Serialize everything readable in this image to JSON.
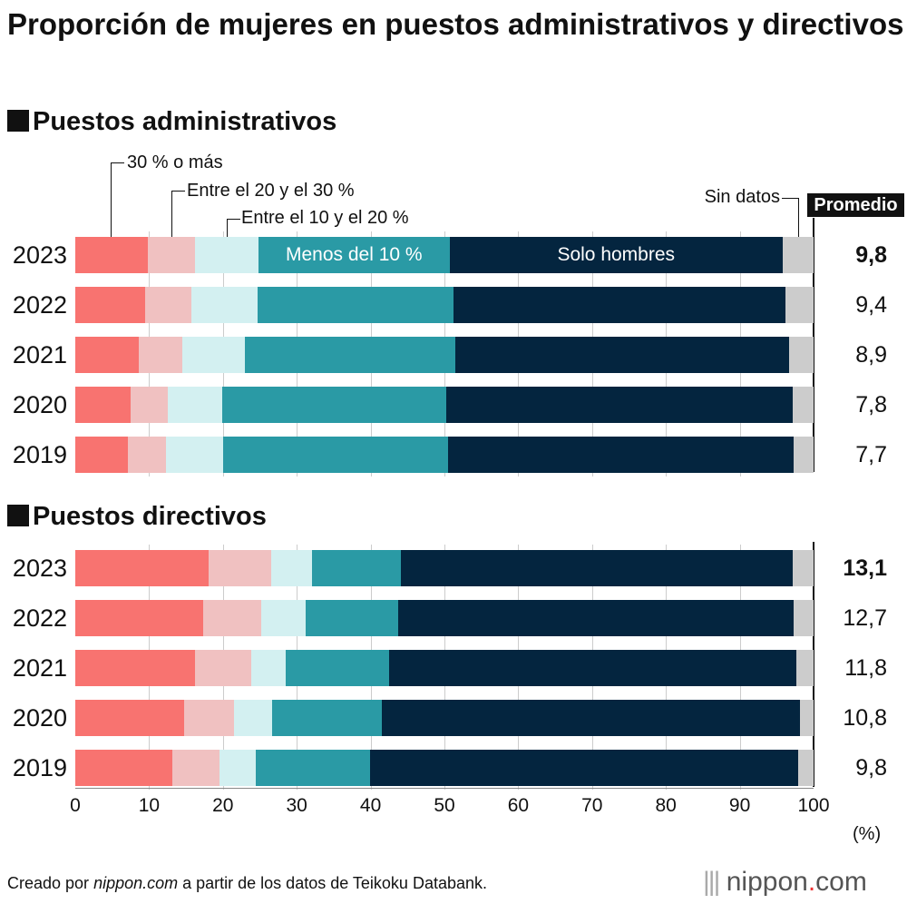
{
  "chart_data": {
    "type": "bar",
    "stacked": true,
    "orientation": "horizontal",
    "title": "Proporción de mujeres en puestos administrativos y directivos",
    "xlim": [
      0,
      100
    ],
    "xticks": [
      0,
      10,
      20,
      30,
      40,
      50,
      60,
      70,
      80,
      90,
      100
    ],
    "xlabel": "(%)",
    "categories_legend": [
      "30 % o más",
      "Entre el 20 y el 30 %",
      "Entre el 10 y el 20 %",
      "Menos del 10 %",
      "Solo hombres",
      "Sin datos"
    ],
    "colors": [
      "#f87370",
      "#f0c1c1",
      "#d3f0f1",
      "#2a9aa5",
      "#04253f",
      "#cccccc"
    ],
    "average_label": "Promedio",
    "panels": [
      {
        "title": "Puestos administrativos",
        "rows": [
          {
            "year": "2023",
            "values": [
              9.8,
              6.4,
              8.6,
              25.9,
              45.1,
              4.2
            ],
            "avg": "9,8",
            "bold": true
          },
          {
            "year": "2022",
            "values": [
              9.5,
              6.2,
              9.0,
              26.5,
              45.0,
              3.8
            ],
            "avg": "9,4"
          },
          {
            "year": "2021",
            "values": [
              8.6,
              5.9,
              8.5,
              28.5,
              45.2,
              3.3
            ],
            "avg": "8,9"
          },
          {
            "year": "2020",
            "values": [
              7.5,
              5.0,
              7.4,
              30.3,
              47.0,
              2.8
            ],
            "avg": "7,8"
          },
          {
            "year": "2019",
            "values": [
              7.1,
              5.2,
              7.7,
              30.5,
              46.8,
              2.7
            ],
            "avg": "7,7"
          }
        ]
      },
      {
        "title": "Puestos directivos",
        "rows": [
          {
            "year": "2023",
            "values": [
              18.1,
              8.4,
              5.6,
              12.0,
              53.1,
              2.8
            ],
            "avg": "13,1",
            "bold": true
          },
          {
            "year": "2022",
            "values": [
              17.3,
              7.9,
              6.0,
              12.5,
              53.6,
              2.7
            ],
            "avg": "12,7"
          },
          {
            "year": "2021",
            "values": [
              16.2,
              7.6,
              4.7,
              14.0,
              55.2,
              2.3
            ],
            "avg": "11,8"
          },
          {
            "year": "2020",
            "values": [
              14.7,
              6.8,
              5.2,
              14.8,
              56.7,
              1.8
            ],
            "avg": "10,8"
          },
          {
            "year": "2019",
            "values": [
              13.1,
              6.4,
              4.9,
              15.5,
              58.0,
              2.1
            ],
            "avg": "9,8"
          }
        ]
      }
    ]
  },
  "footer": {
    "prefix": "Creado por ",
    "site": "nippon.com",
    "suffix": " a partir de los datos de Teikoku Databank."
  },
  "logo": "nippon.com"
}
